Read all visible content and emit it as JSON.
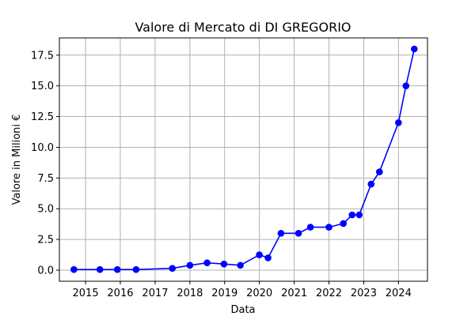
{
  "chart_data": {
    "type": "line",
    "title": "Valore di Mercato di DI GREGORIO",
    "xlabel": "Data",
    "ylabel": "Valore in Milioni €",
    "grid": true,
    "x_ticks": [
      "2015",
      "2016",
      "2017",
      "2018",
      "2019",
      "2020",
      "2021",
      "2022",
      "2023",
      "2024"
    ],
    "y_ticks": [
      "0.0",
      "2.5",
      "5.0",
      "7.5",
      "10.0",
      "12.5",
      "15.0",
      "17.5"
    ],
    "xlim": [
      "2014-04-01",
      "2024-11-01"
    ],
    "ylim": [
      -0.9,
      18.9
    ],
    "series": [
      {
        "color": "#0000ff",
        "x": [
          "2014-09-01",
          "2015-06-01",
          "2015-12-01",
          "2016-06-15",
          "2017-07-01",
          "2018-01-01",
          "2018-07-01",
          "2018-12-25",
          "2019-06-15",
          "2020-01-01",
          "2020-04-01",
          "2020-08-15",
          "2021-02-15",
          "2021-06-20",
          "2022-01-01",
          "2022-06-01",
          "2022-09-01",
          "2022-11-15",
          "2023-03-20",
          "2023-06-15",
          "2024-01-01",
          "2024-03-20",
          "2024-06-15"
        ],
        "y": [
          0.05,
          0.05,
          0.05,
          0.05,
          0.15,
          0.4,
          0.6,
          0.5,
          0.4,
          1.25,
          1.0,
          3.0,
          3.0,
          3.5,
          3.5,
          3.8,
          4.5,
          4.5,
          7.0,
          8.0,
          12.0,
          15.0,
          18.0
        ]
      }
    ]
  }
}
